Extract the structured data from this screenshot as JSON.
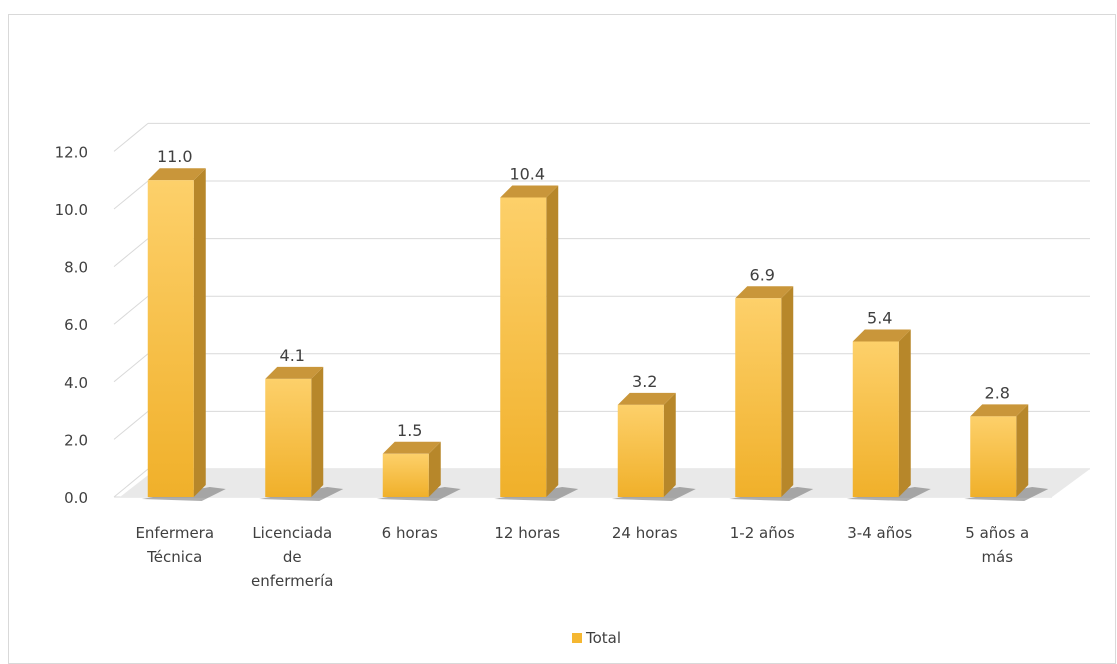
{
  "chart_data": {
    "type": "bar",
    "title": "",
    "xlabel": "",
    "ylabel": "",
    "ylim": [
      0,
      12
    ],
    "y_ticks": [
      "0.0",
      "2.0",
      "4.0",
      "6.0",
      "8.0",
      "10.0",
      "12.0"
    ],
    "grid": true,
    "legend_position": "bottom",
    "categories": [
      [
        "Enfermera",
        "Técnica"
      ],
      [
        "Licenciada",
        "de",
        "enfermería"
      ],
      [
        "6 horas"
      ],
      [
        "12 horas"
      ],
      [
        "24 horas"
      ],
      [
        "1-2 años"
      ],
      [
        "3-4 años"
      ],
      [
        "5 años a",
        "más"
      ]
    ],
    "series": [
      {
        "name": "Total",
        "values": [
          11.0,
          4.1,
          1.5,
          10.4,
          3.2,
          6.9,
          5.4,
          2.8
        ],
        "labels": [
          "11.0",
          "4.1",
          "1.5",
          "10.4",
          "3.2",
          "6.9",
          "5.4",
          "2.8"
        ],
        "color": "#f5b731"
      }
    ]
  }
}
